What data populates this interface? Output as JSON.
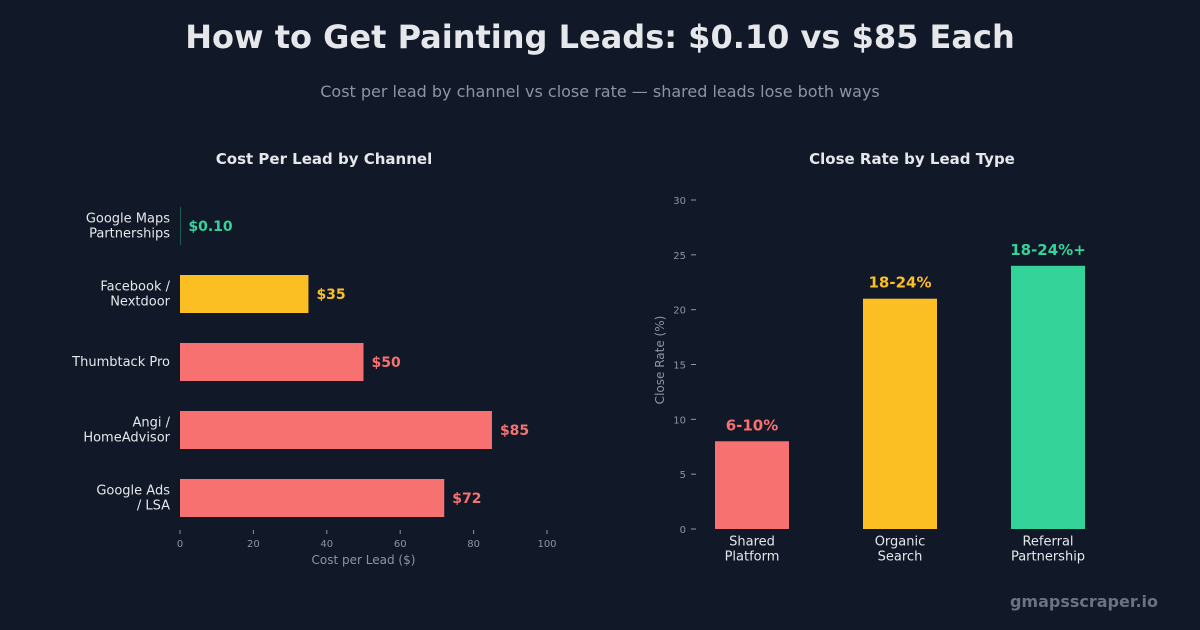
{
  "title": "How to Get Painting Leads: $0.10 vs $85 Each",
  "subtitle": "Cost per lead by channel vs close rate — shared leads lose both ways",
  "watermark": "gmapsscraper.io",
  "chart_data": [
    {
      "type": "bar",
      "orientation": "horizontal",
      "title": "Cost Per Lead by Channel",
      "xlabel": "Cost per Lead ($)",
      "ylabel": "",
      "xlim": [
        0,
        100
      ],
      "xticks": [
        0,
        20,
        40,
        60,
        80,
        100
      ],
      "categories": [
        "Google Maps\nPartnerships",
        "Facebook /\nNextdoor",
        "Thumbtack Pro",
        "Angi /\nHomeAdvisor",
        "Google Ads\n/ LSA"
      ],
      "values": [
        0.1,
        35,
        50,
        85,
        72
      ],
      "data_labels": [
        "$0.10",
        "$35",
        "$50",
        "$85",
        "$72"
      ],
      "colors": [
        "#34d399",
        "#fbbf24",
        "#f87171",
        "#f87171",
        "#f87171"
      ]
    },
    {
      "type": "bar",
      "orientation": "vertical",
      "title": "Close Rate by Lead Type",
      "xlabel": "",
      "ylabel": "Close Rate (%)",
      "ylim": [
        0,
        32
      ],
      "yticks": [
        0,
        5,
        10,
        15,
        20,
        25,
        30
      ],
      "categories": [
        "Shared\nPlatform",
        "Organic\nSearch",
        "Referral\nPartnership"
      ],
      "values": [
        8,
        21,
        24
      ],
      "data_labels": [
        "6-10%",
        "18-24%",
        "18-24%+"
      ],
      "colors": [
        "#f87171",
        "#fbbf24",
        "#34d399"
      ]
    }
  ],
  "colors": {
    "background": "#111827",
    "text": "#e5e7eb",
    "muted": "#8b95a7",
    "red": "#f87171",
    "amber": "#fbbf24",
    "green": "#34d399"
  }
}
